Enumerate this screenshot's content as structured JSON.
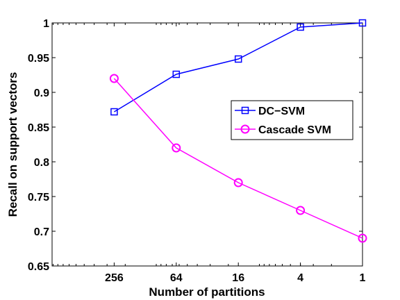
{
  "chart_data": {
    "type": "line",
    "title": "",
    "xlabel": "Number of partitions",
    "ylabel": "Recall on support vectors",
    "x": [
      256,
      64,
      16,
      4,
      1
    ],
    "x_tick_labels": [
      "256",
      "64",
      "16",
      "4",
      "1"
    ],
    "x_scale": "log",
    "x_reversed": true,
    "xlim": [
      1024,
      1
    ],
    "ylim": [
      0.65,
      1
    ],
    "y_ticks": [
      0.65,
      0.7,
      0.75,
      0.8,
      0.85,
      0.9,
      0.95,
      1
    ],
    "y_tick_labels": [
      "0.65",
      "0.7",
      "0.75",
      "0.8",
      "0.85",
      "0.9",
      "0.95",
      "1"
    ],
    "grid": false,
    "legend_position": "right",
    "series": [
      {
        "name": "DC−SVM",
        "values": [
          0.872,
          0.926,
          0.948,
          0.994,
          1.0
        ],
        "color": "#0000ff",
        "marker": "square"
      },
      {
        "name": "Cascade SVM",
        "values": [
          0.92,
          0.82,
          0.77,
          0.73,
          0.69
        ],
        "color": "#ff00ff",
        "marker": "circle"
      }
    ]
  }
}
